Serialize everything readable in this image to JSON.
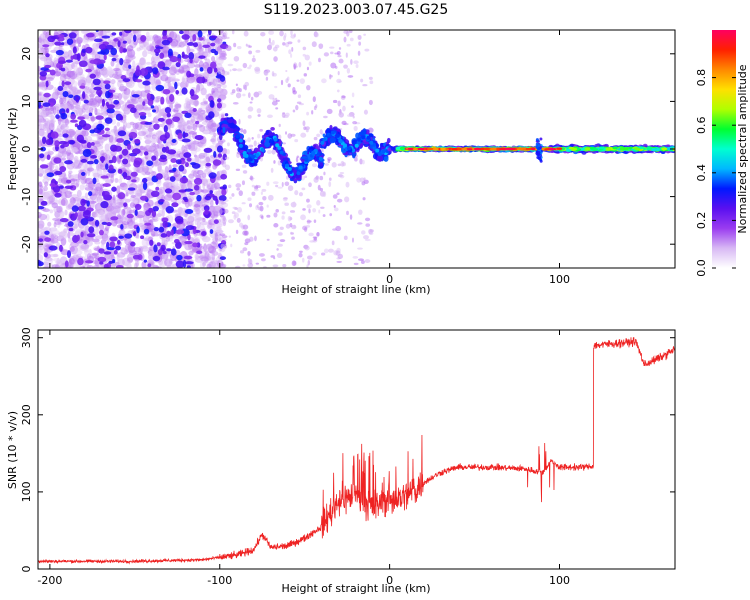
{
  "title": "S119.2023.003.07.45.G25",
  "chart_data": [
    {
      "type": "heatmap",
      "xlabel": "Height of straight line (km)",
      "ylabel": "Frequency (Hz)",
      "xlim": [
        -207,
        168
      ],
      "ylim": [
        -25,
        25
      ],
      "xticks": [
        -200,
        -100,
        0,
        100
      ],
      "yticks": [
        -20,
        -10,
        0,
        10,
        20
      ],
      "colorbar": {
        "label": "Normalized spectral amplitude",
        "range": [
          0,
          1
        ],
        "ticks": [
          "0.0",
          "0.2",
          "0.4",
          "0.6",
          "0.8"
        ],
        "colormap": [
          "#ffffff",
          "#d8b8f4",
          "#9a3cf0",
          "#5a10f0",
          "#0018ff",
          "#00b8ff",
          "#00ffd0",
          "#00ff30",
          "#b0ff00",
          "#ffe000",
          "#ff8800",
          "#ff2000",
          "#ff0060"
        ]
      },
      "regions": [
        {
          "x": [
            -207,
            -100
          ],
          "description_level": "noise",
          "amplitude": [
            0.0,
            0.25
          ]
        },
        {
          "x": [
            -100,
            -40
          ],
          "center_freq": [
            0,
            -5
          ],
          "amplitude": [
            0.2,
            0.4
          ]
        },
        {
          "x": [
            -40,
            0
          ],
          "center_freq": [
            3,
            0
          ],
          "amplitude": [
            0.3,
            0.45
          ]
        },
        {
          "x": [
            0,
            168
          ],
          "center_freq": 0,
          "amplitude": [
            0.6,
            1.0
          ]
        }
      ]
    },
    {
      "type": "line",
      "xlabel": "Height of straight line (km)",
      "ylabel": "SNR (10 * v/v)",
      "xlim": [
        -207,
        168
      ],
      "ylim": [
        0,
        310
      ],
      "xticks": [
        -200,
        -100,
        0,
        100
      ],
      "yticks": [
        0,
        100,
        200,
        300
      ],
      "series": [
        {
          "color": "#ee2222",
          "points": [
            [
              -207,
              10
            ],
            [
              -150,
              10
            ],
            [
              -110,
              12
            ],
            [
              -90,
              18
            ],
            [
              -80,
              25
            ],
            [
              -75,
              45
            ],
            [
              -70,
              28
            ],
            [
              -60,
              30
            ],
            [
              -50,
              40
            ],
            [
              -40,
              55
            ],
            [
              -30,
              90
            ],
            [
              -20,
              95
            ],
            [
              -10,
              80
            ],
            [
              0,
              90
            ],
            [
              10,
              95
            ],
            [
              20,
              112
            ],
            [
              30,
              125
            ],
            [
              40,
              132
            ],
            [
              60,
              132
            ],
            [
              80,
              130
            ],
            [
              90,
              125
            ],
            [
              95,
              140
            ],
            [
              100,
              132
            ],
            [
              110,
              132
            ],
            [
              120,
              133
            ],
            [
              121,
              290
            ],
            [
              130,
              292
            ],
            [
              145,
              295
            ],
            [
              150,
              265
            ],
            [
              160,
              275
            ],
            [
              168,
              285
            ]
          ]
        }
      ]
    }
  ]
}
